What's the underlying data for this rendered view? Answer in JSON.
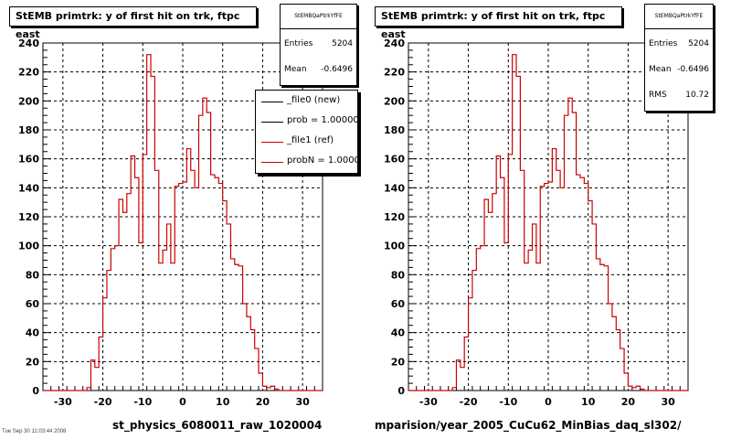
{
  "footer_text": "Tue Sep 30 11:03:44 2008",
  "chart_data": [
    {
      "type": "histogram",
      "title": "StEMB primtrk: y of first hit on trk, ftpc east",
      "xlabel": "st_physics_6080011_raw_1020004",
      "ylabel": "",
      "xlim": [
        -35,
        35
      ],
      "ylim": [
        0,
        240
      ],
      "x_ticks": [
        -30,
        -20,
        -10,
        0,
        10,
        20,
        30
      ],
      "y_ticks": [
        0,
        20,
        40,
        60,
        80,
        100,
        120,
        140,
        160,
        180,
        200,
        220,
        240
      ],
      "grid": true,
      "stats": {
        "header": "StEMBQaPtrkYfFE",
        "entries_label": "Entries",
        "entries": "5204",
        "mean_label": "Mean",
        "mean": "-0.6496"
      },
      "legend": {
        "placement": "top-right",
        "entries": [
          {
            "label": "_file0 (new)",
            "color": "#000000"
          },
          {
            "label": "prob = 1.000000",
            "color": "#000000"
          },
          {
            "label": "_file1 (ref)",
            "color": "#cc0000"
          },
          {
            "label": "probN = 1.000000",
            "color": "#cc0000"
          }
        ]
      },
      "series": [
        {
          "line_color": "#cc0000",
          "bin_width": 1,
          "x_start": -35,
          "values": [
            0,
            0,
            0,
            0,
            0,
            0,
            0,
            0,
            0,
            0,
            0,
            2,
            21,
            16,
            37,
            64,
            83,
            98,
            100,
            132,
            123,
            136,
            162,
            147,
            102,
            163,
            232,
            217,
            152,
            88,
            97,
            115,
            88,
            141,
            143,
            144,
            167,
            152,
            140,
            190,
            202,
            192,
            149,
            147,
            143,
            131,
            115,
            91,
            87,
            86,
            60,
            51,
            42,
            29,
            12,
            3,
            2,
            3,
            1,
            0,
            0,
            0,
            0,
            0,
            0,
            0,
            0,
            0,
            0,
            0
          ]
        }
      ]
    },
    {
      "type": "histogram",
      "title": "StEMB primtrk: y of first hit on trk, ftpc east",
      "xlabel": "mparision/year_2005_CuCu62_MinBias_daq_sl302/",
      "ylabel": "",
      "xlim": [
        -35,
        35
      ],
      "ylim": [
        0,
        240
      ],
      "x_ticks": [
        -30,
        -20,
        -10,
        0,
        10,
        20,
        30
      ],
      "y_ticks": [
        0,
        20,
        40,
        60,
        80,
        100,
        120,
        140,
        160,
        180,
        200,
        220,
        240
      ],
      "grid": true,
      "stats": {
        "header": "StEMBQaPtrkYfFE",
        "entries_label": "Entries",
        "entries": "5204",
        "mean_label": "Mean",
        "mean": "-0.6496",
        "rms_label": "RMS",
        "rms": "10.72"
      },
      "series": [
        {
          "line_color": "#cc0000",
          "bin_width": 1,
          "x_start": -35,
          "values": [
            0,
            0,
            0,
            0,
            0,
            0,
            0,
            0,
            0,
            0,
            0,
            2,
            21,
            16,
            37,
            64,
            83,
            98,
            100,
            132,
            123,
            136,
            162,
            147,
            102,
            163,
            232,
            217,
            152,
            88,
            97,
            115,
            88,
            141,
            143,
            144,
            167,
            152,
            140,
            190,
            202,
            192,
            149,
            147,
            143,
            131,
            115,
            91,
            87,
            86,
            60,
            51,
            42,
            29,
            12,
            3,
            2,
            3,
            1,
            0,
            0,
            0,
            0,
            0,
            0,
            0,
            0,
            0,
            0,
            0
          ]
        }
      ]
    }
  ]
}
